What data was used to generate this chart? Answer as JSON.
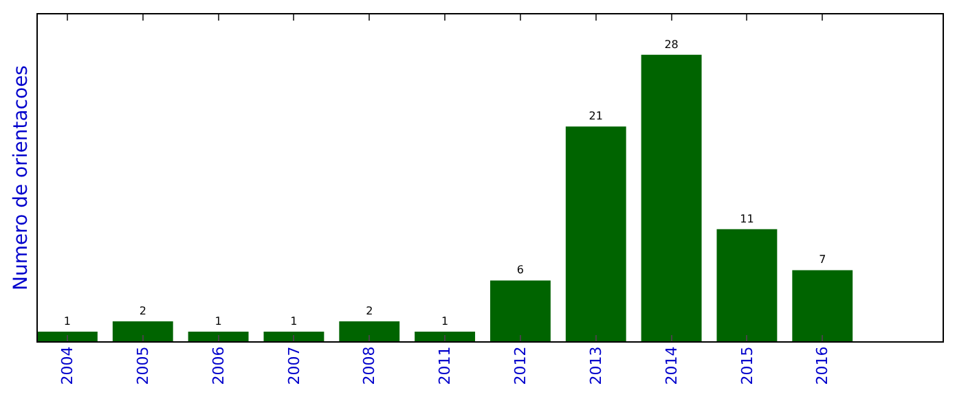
{
  "chart_data": {
    "type": "bar",
    "ylabel": "Numero de orientacoes",
    "categories": [
      "2004",
      "2005",
      "2006",
      "2007",
      "2008",
      "2011",
      "2012",
      "2013",
      "2014",
      "2015",
      "2016"
    ],
    "values": [
      1,
      2,
      1,
      1,
      2,
      1,
      6,
      21,
      28,
      11,
      7
    ],
    "color": "#006400",
    "ylim": [
      0,
      32
    ],
    "data_labels": true,
    "tick_labels": "x"
  }
}
